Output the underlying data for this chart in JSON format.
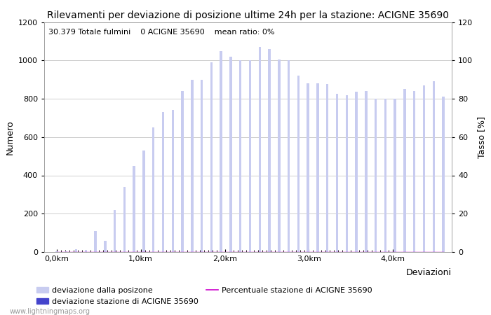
{
  "title": "Rilevamenti per deviazione di posizione ultime 24h per la stazione: ACIGNE 35690",
  "subtitle": "30.379 Totale fulmini    0 ACIGNE 35690    mean ratio: 0%",
  "ylabel_left": "Numero",
  "ylabel_right": "Tasso [%]",
  "xlabel_right": "Deviazioni",
  "bar_color_light": "#c8ccf0",
  "bar_color_dark": "#4444cc",
  "line_color": "#cc00cc",
  "background_color": "#ffffff",
  "grid_color": "#bbbbbb",
  "watermark": "www.lightningmaps.org",
  "ylim_left": [
    0,
    1200
  ],
  "ylim_right": [
    0,
    120
  ],
  "yticks_left": [
    0,
    200,
    400,
    600,
    800,
    1000,
    1200
  ],
  "yticks_right": [
    0,
    20,
    40,
    60,
    80,
    100,
    120
  ],
  "xtick_positions": [
    0,
    1,
    2,
    3,
    4
  ],
  "xtick_labels": [
    "0,0km",
    "1,0km",
    "2,0km",
    "3,0km",
    "4,0km"
  ],
  "x_max": 4.6,
  "bar_values": [
    5,
    5,
    15,
    10,
    110,
    60,
    220,
    340,
    450,
    530,
    650,
    730,
    740,
    840,
    900,
    900,
    990,
    1050,
    1020,
    1000,
    1000,
    1070,
    1060,
    1005,
    1000,
    920,
    880,
    880,
    875,
    825,
    820,
    835,
    840,
    800,
    800,
    800,
    850,
    840,
    870,
    890,
    810
  ],
  "station_values": [
    0,
    0,
    0,
    0,
    0,
    0,
    0,
    0,
    0,
    0,
    0,
    0,
    0,
    0,
    0,
    0,
    0,
    0,
    0,
    0,
    0,
    0,
    0,
    0,
    0,
    0,
    0,
    0,
    0,
    0,
    0,
    0,
    0,
    0,
    0,
    0,
    0,
    0,
    0,
    0,
    0
  ],
  "percent_values": [
    0,
    0,
    0,
    0,
    0,
    0,
    0,
    0,
    0,
    0,
    0,
    0,
    0,
    0,
    0,
    0,
    0,
    0,
    0,
    0,
    0,
    0,
    0,
    0,
    0,
    0,
    0,
    0,
    0,
    0,
    0,
    0,
    0,
    0,
    0,
    0,
    0,
    0,
    0,
    0,
    0
  ],
  "n_bars": 41,
  "title_fontsize": 10,
  "subtitle_fontsize": 8,
  "tick_fontsize": 8,
  "label_fontsize": 9,
  "legend_fontsize": 8,
  "watermark_fontsize": 7
}
